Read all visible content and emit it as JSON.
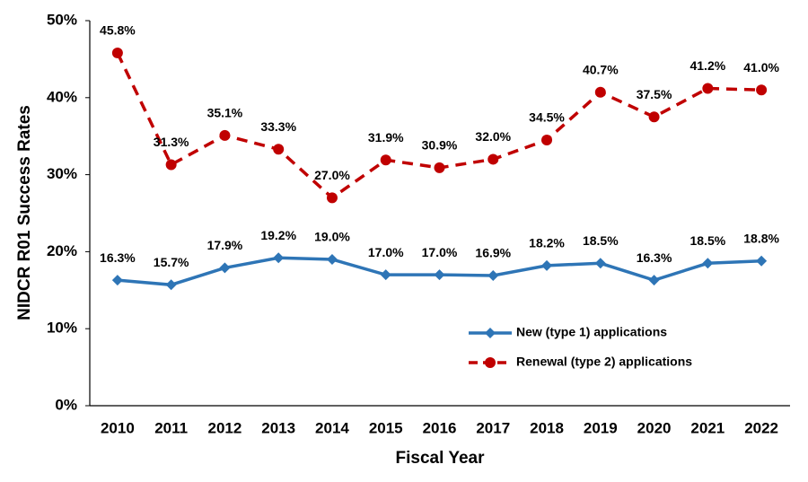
{
  "chart_data": {
    "type": "line",
    "x_label": "Fiscal Year",
    "y_label": "NIDCR R01 Success Rates",
    "categories": [
      "2010",
      "2011",
      "2012",
      "2013",
      "2014",
      "2015",
      "2016",
      "2017",
      "2018",
      "2019",
      "2020",
      "2021",
      "2022"
    ],
    "series": [
      {
        "name": "New (type 1) applications",
        "color": "#2e75b6",
        "marker": "diamond",
        "dashed": false,
        "values": [
          16.3,
          15.7,
          17.9,
          19.2,
          19.0,
          17.0,
          17.0,
          16.9,
          18.2,
          18.5,
          16.3,
          18.5,
          18.8
        ],
        "value_labels": [
          "16.3%",
          "15.7%",
          "17.9%",
          "19.2%",
          "19.0%",
          "17.0%",
          "17.0%",
          "16.9%",
          "18.2%",
          "18.5%",
          "16.3%",
          "18.5%",
          "18.8%"
        ]
      },
      {
        "name": "Renewal (type 2) applications",
        "color": "#c00000",
        "marker": "circle",
        "dashed": true,
        "values": [
          45.8,
          31.3,
          35.1,
          33.3,
          27.0,
          31.9,
          30.9,
          32.0,
          34.5,
          40.7,
          37.5,
          41.2,
          41.0
        ],
        "value_labels": [
          "45.8%",
          "31.3%",
          "35.1%",
          "33.3%",
          "27.0%",
          "31.9%",
          "30.9%",
          "32.0%",
          "34.5%",
          "40.7%",
          "37.5%",
          "41.2%",
          "41.0%"
        ]
      }
    ],
    "ylim": [
      0,
      50
    ],
    "yticks": [
      {
        "value": 0,
        "label": "0%"
      },
      {
        "value": 10,
        "label": "10%"
      },
      {
        "value": 20,
        "label": "20%"
      },
      {
        "value": 30,
        "label": "30%"
      },
      {
        "value": 40,
        "label": "40%"
      },
      {
        "value": 50,
        "label": "50%"
      }
    ],
    "grid": false,
    "legend": "lower right"
  }
}
